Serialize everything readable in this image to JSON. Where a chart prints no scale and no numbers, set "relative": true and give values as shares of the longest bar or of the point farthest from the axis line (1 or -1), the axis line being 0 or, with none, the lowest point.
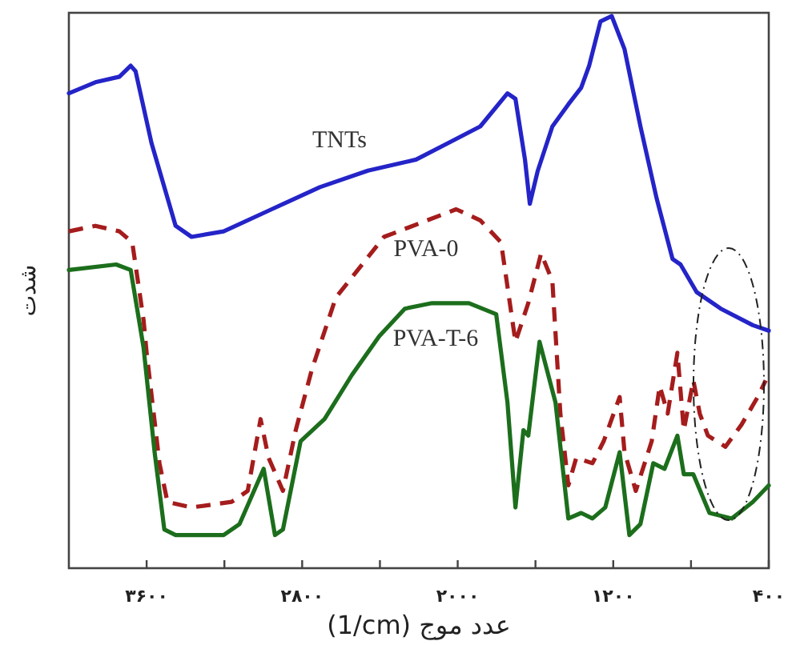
{
  "chart_data": {
    "type": "line",
    "relative": true,
    "xlabel": "عدد موج (1/cm)",
    "ylabel": "شدت",
    "xlim": [
      4000,
      400
    ],
    "xticks": [
      {
        "value": 3600,
        "label": "۳۶۰۰"
      },
      {
        "value": 3200,
        "label": null
      },
      {
        "value": 2800,
        "label": "۲۸۰۰"
      },
      {
        "value": 2400,
        "label": null
      },
      {
        "value": 2000,
        "label": "۲۰۰۰"
      },
      {
        "value": 1600,
        "label": null
      },
      {
        "value": 1200,
        "label": "۱۲۰۰"
      },
      {
        "value": 800,
        "label": null
      },
      {
        "value": 400,
        "label": "۴۰۰"
      }
    ],
    "series": [
      {
        "name": "TNTs",
        "color": "#2424c8",
        "line_style": "solid",
        "x": [
          4000,
          3864,
          3740,
          3682,
          3657,
          3575,
          3451,
          3369,
          3204,
          2957,
          2709,
          2462,
          2214,
          2049,
          1884,
          1744,
          1703,
          1654,
          1629,
          1588,
          1513,
          1431,
          1365,
          1324,
          1266,
          1208,
          1142,
          1060,
          977,
          895,
          854,
          771,
          647,
          482,
          400
        ],
        "values": [
          0.86,
          0.88,
          0.89,
          0.91,
          0.9,
          0.77,
          0.62,
          0.6,
          0.61,
          0.65,
          0.69,
          0.72,
          0.74,
          0.77,
          0.8,
          0.86,
          0.85,
          0.74,
          0.66,
          0.72,
          0.8,
          0.84,
          0.87,
          0.91,
          0.99,
          1.0,
          0.94,
          0.8,
          0.67,
          0.56,
          0.55,
          0.5,
          0.47,
          0.44,
          0.43
        ]
      },
      {
        "name": "PVA-0",
        "color": "#a51c1c",
        "line_style": "dashed",
        "x": [
          4000,
          3864,
          3740,
          3674,
          3616,
          3600,
          3534,
          3493,
          3369,
          3163,
          3080,
          3014,
          2973,
          2899,
          2833,
          2750,
          2627,
          2379,
          2008,
          1884,
          1777,
          1703,
          1637,
          1571,
          1513,
          1472,
          1431,
          1390,
          1307,
          1249,
          1167,
          1142,
          1084,
          1002,
          961,
          920,
          870,
          837,
          788,
          755,
          713,
          623,
          540,
          457,
          416
        ],
        "values": [
          0.61,
          0.62,
          0.61,
          0.59,
          0.45,
          0.39,
          0.19,
          0.12,
          0.11,
          0.12,
          0.14,
          0.27,
          0.2,
          0.14,
          0.25,
          0.36,
          0.49,
          0.6,
          0.65,
          0.63,
          0.59,
          0.41,
          0.48,
          0.57,
          0.52,
          0.28,
          0.15,
          0.2,
          0.19,
          0.23,
          0.31,
          0.21,
          0.14,
          0.23,
          0.33,
          0.28,
          0.39,
          0.25,
          0.34,
          0.28,
          0.24,
          0.22,
          0.26,
          0.31,
          0.34
        ]
      },
      {
        "name": "PVA-T-6",
        "color": "#1c6e1c",
        "line_style": "solid",
        "x": [
          4000,
          3757,
          3682,
          3616,
          3559,
          3509,
          3451,
          3204,
          3122,
          2998,
          2940,
          2899,
          2808,
          2685,
          2544,
          2404,
          2272,
          2132,
          2049,
          1942,
          1802,
          1744,
          1703,
          1662,
          1637,
          1579,
          1497,
          1431,
          1365,
          1307,
          1241,
          1167,
          1117,
          1060,
          994,
          936,
          870,
          837,
          788,
          705,
          590,
          482,
          400
        ],
        "values": [
          0.54,
          0.55,
          0.54,
          0.4,
          0.21,
          0.07,
          0.06,
          0.06,
          0.08,
          0.18,
          0.06,
          0.07,
          0.23,
          0.27,
          0.35,
          0.42,
          0.47,
          0.48,
          0.48,
          0.48,
          0.46,
          0.3,
          0.11,
          0.25,
          0.24,
          0.41,
          0.3,
          0.09,
          0.1,
          0.09,
          0.11,
          0.21,
          0.06,
          0.08,
          0.19,
          0.18,
          0.24,
          0.17,
          0.17,
          0.1,
          0.09,
          0.12,
          0.15
        ]
      }
    ]
  }
}
